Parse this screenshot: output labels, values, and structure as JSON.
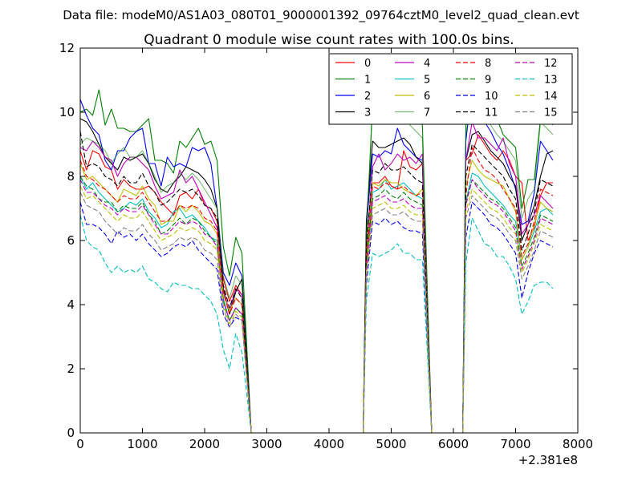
{
  "chart_data": {
    "type": "line",
    "suptitle": "Data file: modeM0/AS1A03_080T01_9000001392_09764cztM0_level2_quad_clean.evt",
    "title": "Quadrant 0 module wise count rates with 100.0s bins.",
    "xlabel": "",
    "ylabel": "",
    "x_offset_label": "+2.381e8",
    "xlim": [
      0,
      8000
    ],
    "ylim": [
      0,
      12
    ],
    "xticks": [
      0,
      1000,
      2000,
      3000,
      4000,
      5000,
      6000,
      7000,
      8000
    ],
    "yticks": [
      0,
      2,
      4,
      6,
      8,
      10,
      12
    ],
    "legend_position": "top-right",
    "legend_columns": 4,
    "segments": [
      {
        "x_start": 0,
        "n": 27
      },
      {
        "x_start": 4600,
        "n": 10
      },
      {
        "x_start": 6200,
        "n": 15
      }
    ],
    "gaps_x": [
      2750,
      4550,
      5650,
      6150
    ],
    "series": [
      {
        "name": "0",
        "color": "#ff0000",
        "style": "solid",
        "values": [
          8.8,
          8.2,
          8.8,
          8.7,
          8.3,
          8.2,
          7.6,
          7.9,
          7.7,
          7.6,
          7.6,
          7.7,
          7.5,
          7.2,
          7.0,
          6.8,
          7.4,
          7.5,
          7.3,
          7.6,
          7.1,
          7.0,
          6.6,
          4.8,
          4.1,
          4.6,
          4.3,
          5.5,
          7.8,
          7.8,
          8.0,
          7.7,
          7.6,
          8.8,
          8.3,
          8.2,
          8.4,
          8.5,
          8.7,
          9.3,
          9.0,
          8.7,
          8.5,
          8.8,
          8.5,
          8.0,
          7.8,
          6.0,
          6.4,
          7.4,
          7.8,
          7.8
        ]
      },
      {
        "name": "1",
        "color": "#008000",
        "style": "solid",
        "values": [
          10.0,
          10.1,
          9.9,
          10.7,
          9.6,
          10.1,
          9.5,
          9.5,
          9.4,
          9.4,
          9.6,
          9.8,
          8.5,
          8.5,
          8.4,
          8.1,
          9.1,
          8.9,
          9.2,
          9.5,
          9.0,
          9.1,
          8.5,
          5.8,
          4.9,
          6.1,
          5.6,
          6.0,
          10.3,
          9.8,
          10.5,
          9.9,
          10.1,
          10.2,
          9.8,
          9.8,
          9.6,
          9.6,
          10.8,
          10.4,
          10.0,
          9.9,
          9.8,
          9.3,
          9.1,
          8.9,
          7.0,
          7.9,
          7.9,
          9.8,
          9.8,
          9.6
        ]
      },
      {
        "name": "2",
        "color": "#0000ff",
        "style": "solid",
        "values": [
          10.4,
          9.9,
          9.5,
          9.3,
          8.5,
          8.2,
          8.8,
          8.8,
          9.2,
          9.4,
          9.5,
          8.4,
          8.4,
          7.7,
          8.6,
          8.3,
          8.4,
          8.3,
          8.9,
          8.8,
          8.9,
          8.4,
          7.0,
          5.0,
          4.6,
          5.3,
          4.9,
          6.4,
          8.7,
          8.6,
          8.8,
          8.7,
          9.5,
          9.0,
          8.8,
          8.6,
          8.5,
          9.1,
          10.8,
          10.0,
          9.7,
          9.4,
          9.0,
          8.7,
          8.2,
          7.6,
          6.5,
          6.6,
          7.5,
          9.1,
          8.8,
          8.5
        ]
      },
      {
        "name": "3",
        "color": "#000000",
        "style": "solid",
        "values": [
          9.8,
          9.7,
          9.4,
          9.0,
          8.6,
          8.4,
          8.2,
          8.6,
          8.5,
          8.6,
          8.7,
          8.4,
          7.9,
          7.6,
          7.5,
          7.8,
          8.0,
          8.3,
          8.2,
          8.1,
          7.9,
          7.6,
          7.0,
          4.5,
          3.7,
          4.4,
          4.8,
          6.6,
          9.1,
          8.9,
          8.9,
          9.0,
          9.1,
          9.2,
          9.0,
          8.6,
          8.4,
          8.5,
          9.3,
          9.4,
          9.1,
          8.8,
          8.6,
          8.4,
          8.0,
          7.7,
          6.0,
          6.5,
          7.1,
          8.0,
          8.7,
          8.8
        ]
      },
      {
        "name": "4",
        "color": "#bf00bf",
        "style": "solid",
        "values": [
          8.9,
          8.8,
          9.1,
          8.9,
          8.6,
          8.5,
          8.0,
          8.4,
          8.6,
          8.6,
          8.4,
          8.2,
          7.7,
          7.3,
          7.4,
          7.5,
          8.2,
          7.8,
          8.0,
          7.6,
          7.2,
          6.8,
          6.4,
          4.4,
          3.8,
          4.5,
          4.3,
          5.6,
          8.3,
          8.7,
          8.2,
          8.4,
          8.7,
          8.5,
          8.6,
          8.4,
          8.7,
          8.5,
          9.7,
          9.2,
          9.2,
          9.0,
          8.8,
          9.2,
          8.4,
          8.0,
          6.2,
          6.5,
          6.8,
          7.4,
          7.2,
          7.0
        ]
      },
      {
        "name": "5",
        "color": "#00bfbf",
        "style": "solid",
        "values": [
          8.0,
          7.6,
          7.8,
          7.5,
          7.3,
          7.1,
          6.9,
          7.0,
          7.2,
          7.1,
          7.3,
          6.9,
          6.7,
          6.4,
          6.5,
          6.9,
          7.0,
          6.7,
          6.8,
          6.6,
          6.4,
          6.1,
          6.0,
          4.2,
          3.5,
          3.9,
          3.7,
          5.3,
          7.5,
          7.6,
          7.9,
          7.6,
          7.7,
          7.8,
          7.6,
          7.4,
          7.3,
          7.2,
          8.1,
          8.0,
          7.7,
          7.5,
          7.3,
          7.1,
          6.8,
          6.6,
          5.4,
          5.8,
          6.3,
          6.9,
          7.0,
          6.8
        ]
      },
      {
        "name": "6",
        "color": "#bfbf00",
        "style": "solid",
        "values": [
          8.4,
          7.9,
          8.0,
          7.8,
          7.6,
          7.4,
          7.2,
          7.6,
          7.5,
          7.4,
          7.7,
          7.3,
          7.1,
          6.5,
          6.6,
          6.6,
          7.1,
          6.9,
          7.1,
          6.9,
          6.6,
          6.5,
          6.2,
          4.3,
          3.8,
          4.2,
          4.0,
          5.5,
          7.8,
          7.7,
          7.9,
          7.8,
          7.8,
          7.6,
          7.5,
          7.4,
          7.6,
          7.7,
          8.5,
          8.2,
          8.0,
          7.9,
          7.8,
          7.7,
          7.3,
          6.9,
          5.4,
          5.8,
          6.5,
          7.2,
          7.0,
          6.9
        ]
      },
      {
        "name": "7",
        "color": "#008000",
        "style": "solid",
        "opacity": 0.55,
        "values": [
          9.0,
          9.2,
          9.1,
          9.0,
          8.8,
          8.4,
          8.7,
          8.9,
          8.6,
          8.6,
          8.8,
          8.4,
          8.0,
          7.5,
          7.7,
          7.8,
          8.1,
          7.9,
          8.1,
          7.9,
          7.6,
          7.3,
          7.0,
          4.9,
          4.2,
          4.9,
          4.6,
          6.2,
          10.3,
          9.9,
          10.4,
          9.9,
          10.1,
          10.2,
          9.6,
          9.4,
          9.2,
          9.3,
          10.6,
          10.1,
          9.9,
          9.6,
          9.3,
          9.1,
          8.8,
          8.5,
          6.7,
          7.3,
          7.6,
          9.7,
          9.5,
          9.3
        ]
      },
      {
        "name": "8",
        "color": "#ff0000",
        "style": "dashed",
        "values": [
          8.5,
          8.0,
          7.9,
          7.7,
          7.6,
          7.4,
          7.2,
          7.4,
          7.3,
          7.3,
          7.5,
          7.2,
          6.9,
          6.6,
          6.6,
          6.8,
          7.1,
          7.0,
          7.1,
          7.0,
          6.7,
          6.6,
          6.3,
          4.4,
          3.7,
          4.2,
          4.0,
          5.4,
          7.7,
          7.6,
          7.8,
          7.7,
          7.6,
          7.7,
          7.5,
          7.4,
          7.5,
          7.4,
          8.9,
          8.5,
          8.2,
          8.1,
          7.9,
          7.6,
          7.3,
          7.0,
          5.5,
          5.9,
          6.6,
          7.6,
          7.5,
          7.4
        ]
      },
      {
        "name": "9",
        "color": "#008000",
        "style": "dashed",
        "values": [
          8.0,
          7.7,
          7.6,
          7.3,
          7.2,
          7.2,
          6.9,
          7.1,
          7.0,
          7.0,
          7.2,
          6.8,
          6.6,
          6.2,
          6.3,
          6.5,
          6.7,
          6.5,
          6.7,
          6.6,
          6.3,
          6.1,
          5.9,
          4.1,
          3.5,
          3.9,
          3.7,
          5.2,
          7.3,
          7.4,
          7.6,
          7.4,
          7.3,
          7.5,
          7.3,
          7.2,
          7.1,
          7.2,
          7.9,
          7.7,
          7.5,
          7.3,
          7.2,
          7.0,
          6.7,
          6.4,
          5.2,
          5.6,
          6.1,
          6.8,
          6.7,
          6.6
        ]
      },
      {
        "name": "10",
        "color": "#0000ff",
        "style": "dashed",
        "values": [
          7.2,
          6.5,
          6.5,
          6.4,
          6.2,
          5.9,
          6.3,
          6.1,
          6.2,
          6.0,
          6.2,
          5.9,
          5.7,
          5.5,
          5.6,
          5.8,
          5.9,
          5.8,
          6.0,
          5.7,
          5.5,
          5.3,
          5.1,
          3.7,
          3.3,
          3.6,
          3.5,
          4.6,
          6.6,
          6.5,
          6.7,
          6.5,
          6.6,
          6.4,
          6.3,
          6.3,
          6.2,
          6.1,
          7.2,
          7.0,
          6.8,
          6.5,
          6.4,
          6.2,
          5.9,
          5.6,
          4.2,
          5.0,
          5.6,
          6.0,
          5.9,
          5.8
        ]
      },
      {
        "name": "11",
        "color": "#000000",
        "style": "dashed",
        "values": [
          9.4,
          8.3,
          8.4,
          8.3,
          8.0,
          7.9,
          7.7,
          8.0,
          7.8,
          7.8,
          8.1,
          7.7,
          7.5,
          7.1,
          7.2,
          7.4,
          7.6,
          7.5,
          7.6,
          7.4,
          7.1,
          7.0,
          6.7,
          4.6,
          3.9,
          4.5,
          4.2,
          5.8,
          8.2,
          8.1,
          8.4,
          8.2,
          8.2,
          8.3,
          8.1,
          7.9,
          7.8,
          8.0,
          9.0,
          8.8,
          8.6,
          8.4,
          8.2,
          8.0,
          7.6,
          7.3,
          5.7,
          6.2,
          6.9,
          7.9,
          7.8,
          7.7
        ]
      },
      {
        "name": "12",
        "color": "#bf00bf",
        "style": "dashed",
        "values": [
          7.9,
          7.5,
          7.5,
          7.3,
          7.1,
          7.0,
          6.8,
          7.0,
          6.9,
          6.9,
          7.1,
          6.8,
          6.5,
          6.2,
          6.2,
          6.4,
          6.6,
          6.5,
          6.6,
          6.5,
          6.2,
          6.1,
          5.8,
          4.1,
          3.5,
          3.9,
          3.7,
          5.1,
          7.2,
          7.3,
          7.4,
          7.2,
          7.2,
          7.3,
          7.1,
          7.0,
          7.0,
          7.1,
          7.9,
          7.6,
          7.4,
          7.2,
          7.1,
          6.9,
          6.6,
          6.3,
          5.1,
          5.5,
          6.0,
          6.7,
          6.6,
          6.5
        ]
      },
      {
        "name": "13",
        "color": "#00bfbf",
        "style": "dashed",
        "values": [
          6.8,
          6.0,
          5.8,
          5.7,
          5.3,
          5.0,
          5.2,
          5.0,
          5.1,
          5.0,
          5.2,
          4.8,
          4.7,
          4.5,
          4.4,
          4.7,
          4.6,
          4.6,
          4.5,
          4.5,
          4.3,
          4.1,
          3.7,
          2.6,
          2.0,
          3.1,
          2.5,
          4.1,
          5.6,
          5.5,
          5.6,
          5.7,
          5.9,
          5.6,
          5.6,
          5.4,
          5.4,
          5.3,
          6.7,
          6.3,
          5.9,
          5.8,
          5.5,
          5.5,
          5.2,
          4.8,
          3.7,
          4.1,
          4.6,
          4.7,
          4.7,
          4.5
        ]
      },
      {
        "name": "14",
        "color": "#bfbf00",
        "style": "dashed",
        "values": [
          7.7,
          7.3,
          7.4,
          7.2,
          7.0,
          6.8,
          6.6,
          6.8,
          6.7,
          6.7,
          6.9,
          6.6,
          6.3,
          6.0,
          6.1,
          6.2,
          6.4,
          6.3,
          6.4,
          6.3,
          6.0,
          5.9,
          5.7,
          4.0,
          3.4,
          3.8,
          3.6,
          5.0,
          7.0,
          7.1,
          7.2,
          7.0,
          7.0,
          7.1,
          6.9,
          6.8,
          6.8,
          6.9,
          7.6,
          7.4,
          7.2,
          7.0,
          6.9,
          6.7,
          6.4,
          6.2,
          5.0,
          5.4,
          5.9,
          6.5,
          6.4,
          6.3
        ]
      },
      {
        "name": "15",
        "color": "#808080",
        "style": "dashed",
        "values": [
          7.5,
          7.1,
          7.0,
          6.9,
          6.6,
          6.4,
          6.2,
          6.4,
          6.3,
          6.3,
          6.5,
          6.2,
          6.0,
          5.7,
          5.8,
          5.9,
          6.1,
          6.0,
          6.1,
          6.0,
          5.7,
          5.6,
          5.4,
          3.9,
          3.3,
          3.7,
          3.5,
          4.8,
          6.8,
          6.9,
          7.0,
          6.8,
          6.8,
          6.9,
          6.7,
          6.6,
          6.6,
          6.7,
          7.4,
          7.2,
          7.0,
          6.8,
          6.7,
          6.5,
          6.2,
          6.0,
          4.8,
          5.2,
          5.7,
          6.3,
          6.2,
          6.1
        ]
      }
    ]
  }
}
